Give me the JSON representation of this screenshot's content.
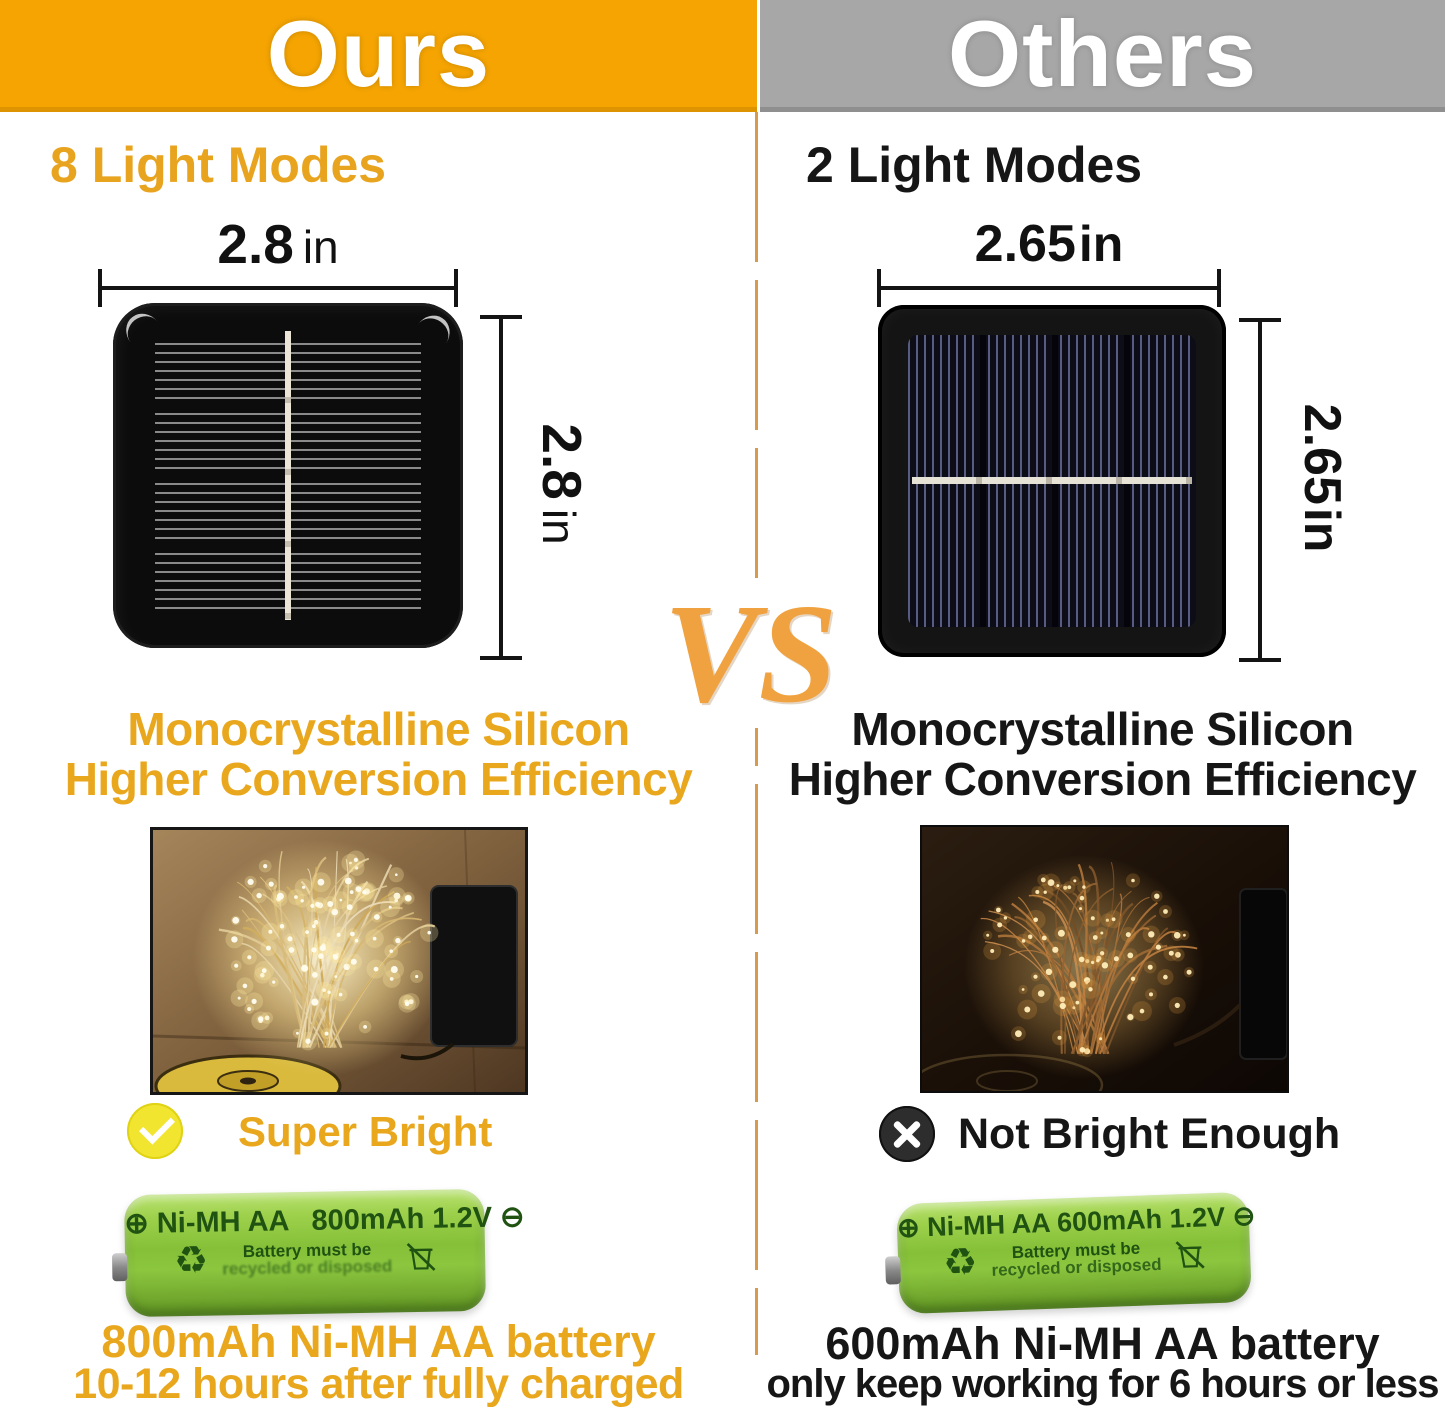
{
  "header": {
    "left_label": "Ours",
    "right_label": "Others"
  },
  "vs_label": "VS",
  "left": {
    "modes_label": "8 Light Modes",
    "width_value": "2.8",
    "width_unit": "in",
    "height_value": "2.8",
    "height_unit": "in",
    "feature_line1": "Monocrystalline Silicon",
    "feature_line2": "Higher Conversion Efficiency",
    "brightness_label": "Super Bright",
    "battery_print": {
      "plus_symbol": "⊕",
      "chemistry": "Ni-MH",
      "size": "AA",
      "capacity": "800mAh",
      "voltage": "1.2V",
      "minus_symbol": "⊖",
      "recycle_symbol": "♻",
      "note_line1": "Battery must be",
      "note_line2": "recycled or disposed"
    },
    "caption_line1": "800mAh Ni-MH AA battery",
    "caption_line2": "10-12 hours after fully charged"
  },
  "right": {
    "modes_label": "2 Light Modes",
    "width_value": "2.65",
    "width_unit": "in",
    "height_value": "2.65",
    "height_unit": "in",
    "feature_line1": "Monocrystalline Silicon",
    "feature_line2": "Higher Conversion Efficiency",
    "brightness_label": "Not Bright Enough",
    "battery_print": {
      "plus_symbol": "⊕",
      "chemistry": "Ni-MH",
      "size": "AA",
      "capacity": "600mAh",
      "voltage": "1.2V",
      "minus_symbol": "⊖",
      "recycle_symbol": "♻",
      "note_line1": "Battery must be",
      "note_line2": "recycled or disposed"
    },
    "caption_line1": "600mAh Ni-MH AA battery",
    "caption_line2": "only keep working for 6 hours or less"
  },
  "colors": {
    "header_orange": "#F5A402",
    "header_gray": "#A7A7A7",
    "accent_gold": "#E9A71E",
    "vs_orange": "#F0A240",
    "divider_tan": "#D79B4F",
    "battery_green": "#8CC63F",
    "check_yellow": "#F2E530",
    "text_black": "#161616"
  }
}
